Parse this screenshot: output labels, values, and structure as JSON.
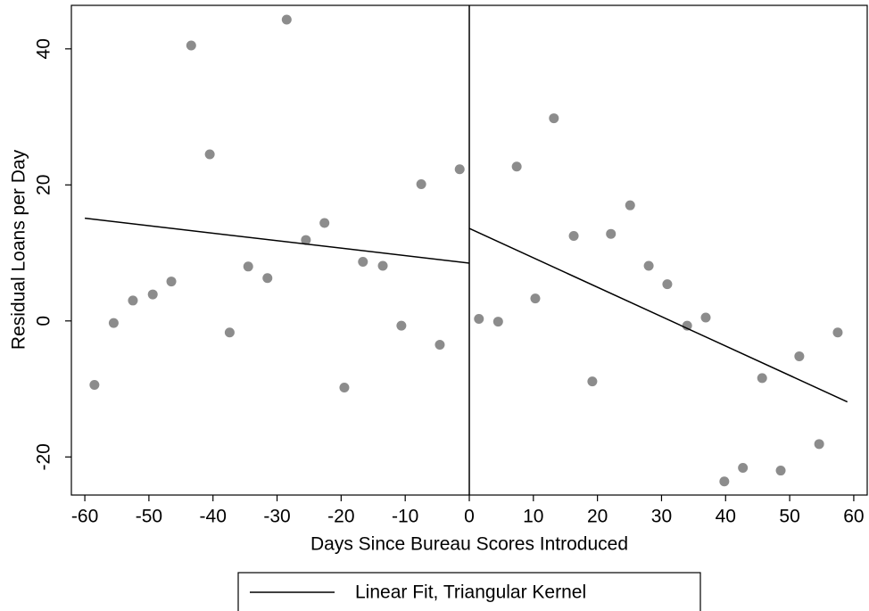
{
  "chart_data": {
    "type": "scatter",
    "xlabel": "Days Since Bureau Scores Introduced",
    "ylabel": "Residual Loans per Day",
    "xlim": [
      -62.1,
      62.1
    ],
    "ylim": [
      -25.6,
      46.4
    ],
    "xticks": [
      -60,
      -50,
      -40,
      -30,
      -20,
      -10,
      0,
      10,
      20,
      30,
      40,
      50,
      60
    ],
    "yticks": [
      -20,
      0,
      20,
      40
    ],
    "vline": 0,
    "series": [
      {
        "type": "scatter",
        "color": "#8c8c8c",
        "x": [
          -58.5,
          -55.5,
          -52.5,
          -49.4,
          -46.5,
          -43.4,
          -40.5,
          -37.4,
          -34.5,
          -31.5,
          -28.5,
          -25.5,
          -22.6,
          -19.5,
          -16.6,
          -13.5,
          -10.6,
          -7.5,
          -4.6,
          -1.5,
          1.5,
          4.5,
          7.4,
          10.3,
          13.2,
          16.3,
          19.2,
          22.1,
          25.1,
          28,
          30.9,
          34,
          36.9,
          39.8,
          42.7,
          45.7,
          48.6,
          51.5,
          54.6,
          57.5
        ],
        "values": [
          -9.4,
          -0.3,
          3.0,
          3.9,
          5.8,
          40.5,
          24.5,
          -1.7,
          8.0,
          6.3,
          44.3,
          11.9,
          14.4,
          -9.8,
          8.7,
          8.1,
          -0.7,
          20.1,
          -3.5,
          22.3,
          0.3,
          -0.1,
          22.7,
          3.3,
          29.8,
          12.5,
          -8.9,
          12.8,
          17.0,
          8.1,
          5.4,
          -0.7,
          0.5,
          -23.6,
          -21.6,
          -8.4,
          -22.0,
          -5.2,
          -18.1,
          -1.7
        ]
      },
      {
        "type": "line",
        "name": "Linear Fit, Triangular Kernel",
        "color": "#000000",
        "x": [
          -60,
          0,
          null,
          0,
          59
        ],
        "values": [
          15.1,
          8.5,
          null,
          13.6,
          -11.9
        ]
      }
    ]
  }
}
